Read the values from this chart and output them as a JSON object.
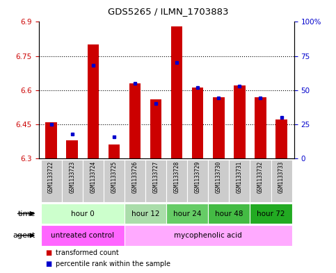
{
  "title": "GDS5265 / ILMN_1703883",
  "samples": [
    "GSM1133722",
    "GSM1133723",
    "GSM1133724",
    "GSM1133725",
    "GSM1133726",
    "GSM1133727",
    "GSM1133728",
    "GSM1133729",
    "GSM1133730",
    "GSM1133731",
    "GSM1133732",
    "GSM1133733"
  ],
  "transformed_count": [
    6.46,
    6.38,
    6.8,
    6.36,
    6.63,
    6.56,
    6.88,
    6.61,
    6.57,
    6.62,
    6.57,
    6.47
  ],
  "percentile_rank": [
    25,
    18,
    68,
    16,
    55,
    40,
    70,
    52,
    44,
    53,
    44,
    30
  ],
  "bar_bottom": 6.3,
  "ylim_left": [
    6.3,
    6.9
  ],
  "ylim_right": [
    0,
    100
  ],
  "yticks_left": [
    6.3,
    6.45,
    6.6,
    6.75,
    6.9
  ],
  "yticks_right": [
    0,
    25,
    50,
    75,
    100
  ],
  "ytick_labels_left": [
    "6.3",
    "6.45",
    "6.6",
    "6.75",
    "6.9"
  ],
  "ytick_labels_right": [
    "0",
    "25",
    "50",
    "75",
    "100%"
  ],
  "bar_color": "#cc0000",
  "percentile_color": "#0000cc",
  "grid_dotted_at": [
    6.45,
    6.6,
    6.75
  ],
  "time_groups": [
    {
      "label": "hour 0",
      "start": 0,
      "end": 3,
      "color": "#ccffcc"
    },
    {
      "label": "hour 12",
      "start": 4,
      "end": 5,
      "color": "#aaddaa"
    },
    {
      "label": "hour 24",
      "start": 6,
      "end": 7,
      "color": "#66cc66"
    },
    {
      "label": "hour 48",
      "start": 8,
      "end": 9,
      "color": "#44bb44"
    },
    {
      "label": "hour 72",
      "start": 10,
      "end": 11,
      "color": "#22aa22"
    }
  ],
  "agent_groups": [
    {
      "label": "untreated control",
      "start": 0,
      "end": 3,
      "color": "#ff66ff"
    },
    {
      "label": "mycophenolic acid",
      "start": 4,
      "end": 11,
      "color": "#ffaaff"
    }
  ],
  "sample_box_color": "#cccccc",
  "legend_red_label": "transformed count",
  "legend_blue_label": "percentile rank within the sample",
  "background_color": "#ffffff"
}
